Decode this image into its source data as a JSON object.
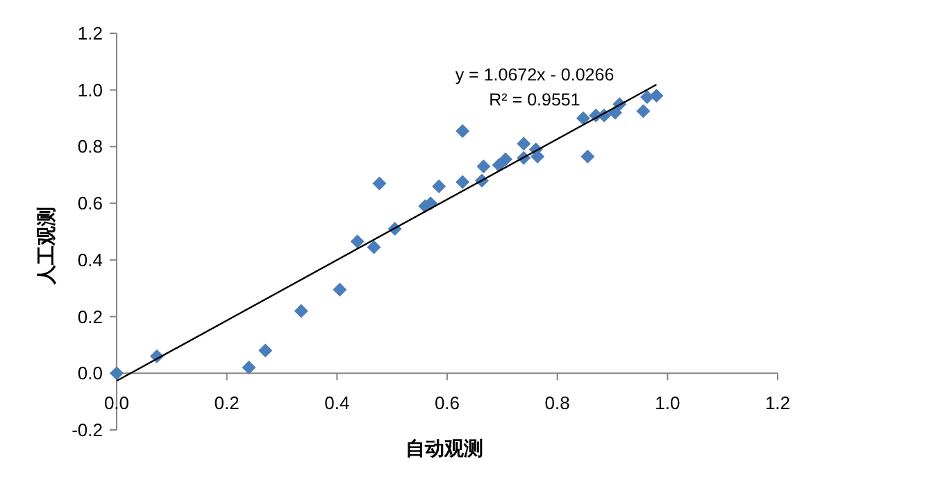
{
  "chart_data": {
    "type": "scatter",
    "xlabel": "自动观测",
    "ylabel": "人工观测",
    "xlim": [
      0,
      1.2
    ],
    "ylim": [
      -0.2,
      1.2
    ],
    "xticks": [
      {
        "value": 0,
        "label": "0.0"
      },
      {
        "value": 0.2,
        "label": "0.2"
      },
      {
        "value": 0.4,
        "label": "0.4"
      },
      {
        "value": 0.6,
        "label": "0.6"
      },
      {
        "value": 0.8,
        "label": "0.8"
      },
      {
        "value": 1,
        "label": "1.0"
      },
      {
        "value": 1.2,
        "label": "1.2"
      }
    ],
    "yticks": [
      {
        "value": -0.2,
        "label": "-0.2"
      },
      {
        "value": 0,
        "label": "0.0"
      },
      {
        "value": 0.2,
        "label": "0.2"
      },
      {
        "value": 0.4,
        "label": "0.4"
      },
      {
        "value": 0.6,
        "label": "0.6"
      },
      {
        "value": 0.8,
        "label": "0.8"
      },
      {
        "value": 1,
        "label": "1.0"
      },
      {
        "value": 1.2,
        "label": "1.2"
      }
    ],
    "grid": false,
    "annotations": [
      "y = 1.0672x - 0.0266",
      "R² = 0.9551"
    ],
    "series": [
      {
        "marker": "diamond",
        "color": "#4a7ebb",
        "x": [
          0,
          0.073,
          0.24,
          0.27,
          0.335,
          0.405,
          0.437,
          0.467,
          0.477,
          0.505,
          0.56,
          0.57,
          0.585,
          0.628,
          0.628,
          0.663,
          0.666,
          0.694,
          0.706,
          0.739,
          0.739,
          0.761,
          0.764,
          0.855,
          0.847,
          0.87,
          0.885,
          0.905,
          0.913,
          0.956,
          0.963,
          0.98
        ],
        "values": [
          0,
          0.06,
          0.02,
          0.08,
          0.22,
          0.295,
          0.465,
          0.445,
          0.67,
          0.51,
          0.59,
          0.6,
          0.66,
          0.855,
          0.675,
          0.68,
          0.73,
          0.735,
          0.755,
          0.81,
          0.76,
          0.79,
          0.765,
          0.765,
          0.9,
          0.91,
          0.91,
          0.92,
          0.95,
          0.925,
          0.975,
          0.98
        ]
      },
      {
        "type": "line",
        "marker": "none",
        "line_style": "solid",
        "color": "#000000",
        "x": [
          0,
          0.98
        ],
        "values": [
          -0.027,
          1.019
        ]
      }
    ]
  }
}
